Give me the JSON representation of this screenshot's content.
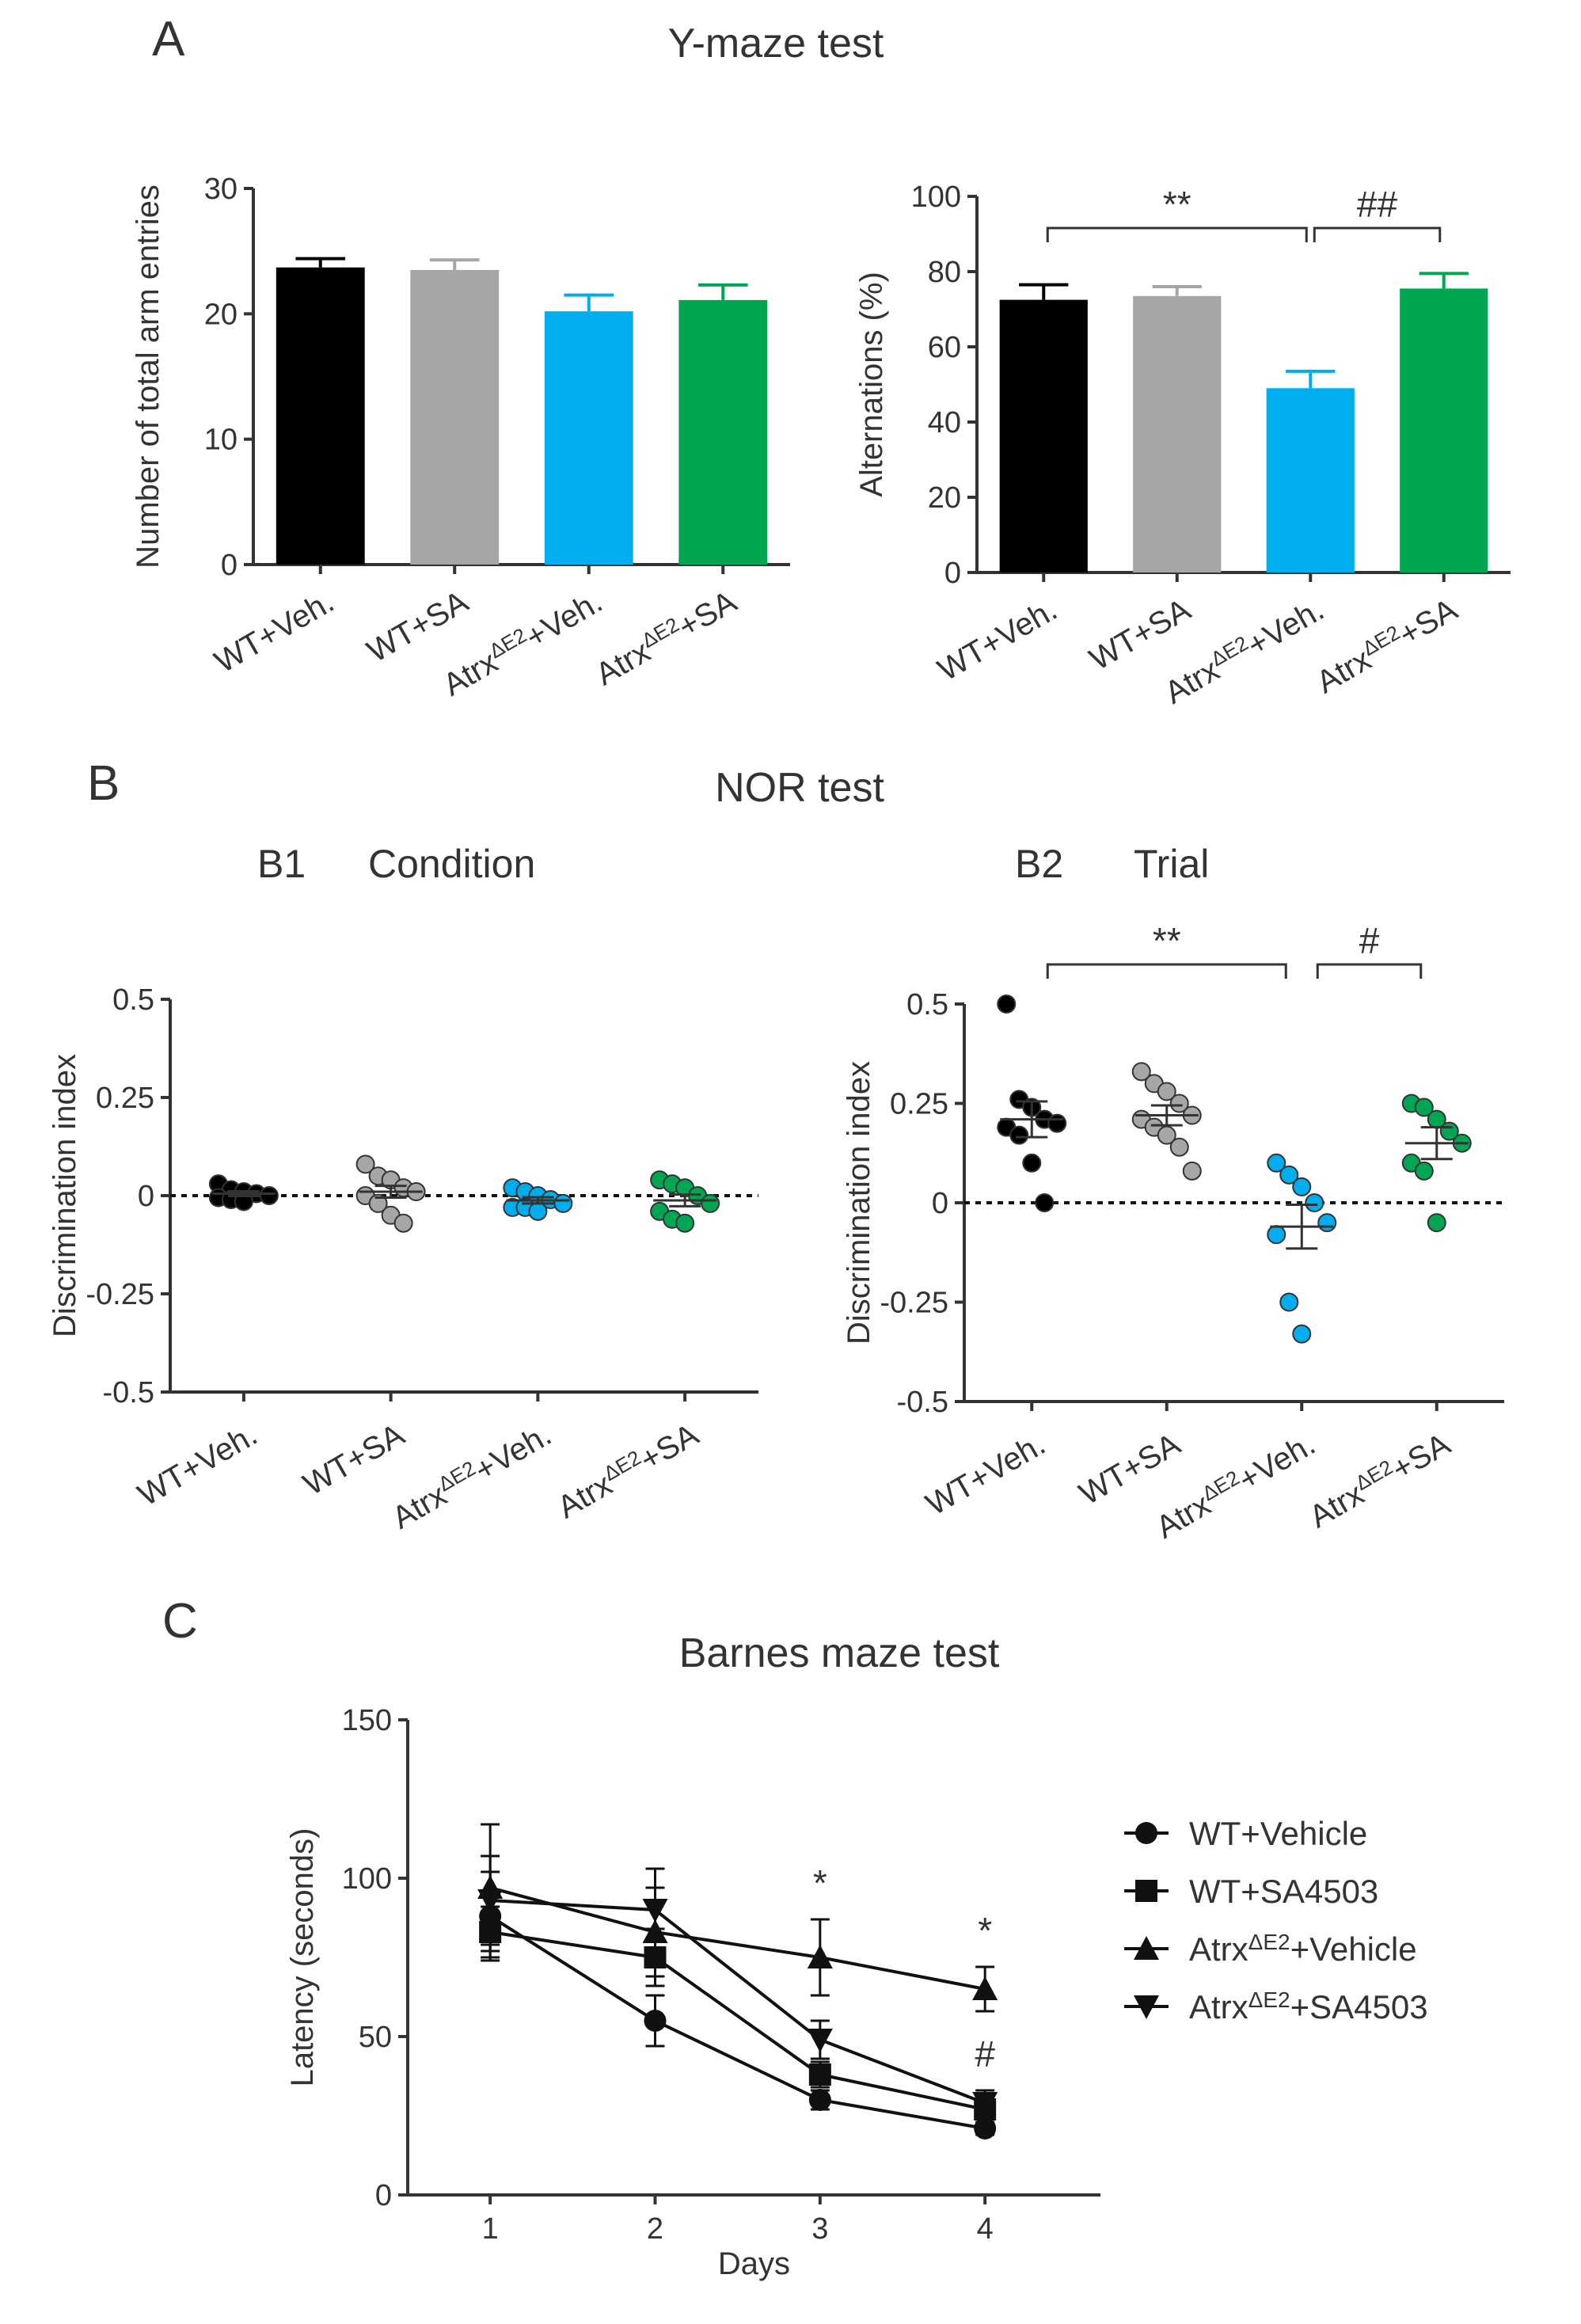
{
  "figure": {
    "panel_letters": [
      "A",
      "B",
      "C"
    ],
    "titles": {
      "A": "Y-maze test",
      "B": "NOR test",
      "C": "Barnes maze test"
    },
    "subpanels": {
      "B1": {
        "label": "B1",
        "title": "Condition"
      },
      "B2": {
        "label": "B2",
        "title": "Trial"
      }
    },
    "colors": {
      "wt_veh": "#000000",
      "wt_sa": "#a6a6a6",
      "atrx_veh": "#00aeef",
      "atrx_sa": "#00a651"
    }
  },
  "chart_data": [
    {
      "id": "A1",
      "type": "bar",
      "title": "",
      "ylabel": "Number of total arm entries",
      "ylim": [
        0,
        30
      ],
      "yticks": [
        0,
        10,
        20,
        30
      ],
      "categories": [
        {
          "main": "WT+Veh.",
          "sup": "",
          "tail": ""
        },
        {
          "main": "WT+SA",
          "sup": "",
          "tail": ""
        },
        {
          "main": "Atrx",
          "sup": "ΔE2",
          "tail": "+Veh."
        },
        {
          "main": "Atrx",
          "sup": "ΔE2",
          "tail": "+SA"
        }
      ],
      "values": [
        23.7,
        23.5,
        20.2,
        21.1
      ],
      "errors": [
        0.7,
        0.8,
        1.3,
        1.2
      ],
      "colors": [
        "#000000",
        "#a6a6a6",
        "#00aeef",
        "#00a651"
      ],
      "annotations": []
    },
    {
      "id": "A2",
      "type": "bar",
      "title": "",
      "ylabel": "Alternations (%)",
      "ylim": [
        0,
        100
      ],
      "yticks": [
        0,
        20,
        40,
        60,
        80,
        100
      ],
      "categories": [
        {
          "main": "WT+Veh.",
          "sup": "",
          "tail": ""
        },
        {
          "main": "WT+SA",
          "sup": "",
          "tail": ""
        },
        {
          "main": "Atrx",
          "sup": "ΔE2",
          "tail": "+Veh."
        },
        {
          "main": "Atrx",
          "sup": "ΔE2",
          "tail": "+SA"
        }
      ],
      "values": [
        72.5,
        73.5,
        49,
        75.5
      ],
      "errors": [
        4,
        2.5,
        4.5,
        4
      ],
      "colors": [
        "#000000",
        "#a6a6a6",
        "#00aeef",
        "#00a651"
      ],
      "annotations": [
        {
          "from": 0,
          "to": 2,
          "label": "**"
        },
        {
          "from": 2,
          "to": 3,
          "label": "##"
        }
      ]
    },
    {
      "id": "B1",
      "type": "scatter",
      "title": "Condition",
      "ylabel": "Discrimination index",
      "ylim": [
        -0.5,
        0.5
      ],
      "yticks": [
        -0.5,
        -0.25,
        0,
        0.25,
        0.5
      ],
      "categories": [
        {
          "main": "WT+Veh.",
          "sup": "",
          "tail": ""
        },
        {
          "main": "WT+SA",
          "sup": "",
          "tail": ""
        },
        {
          "main": "Atrx",
          "sup": "ΔE2",
          "tail": "+Veh."
        },
        {
          "main": "Atrx",
          "sup": "ΔE2",
          "tail": "+SA"
        }
      ],
      "points": [
        [
          0.03,
          0.015,
          0.01,
          0.0,
          -0.005,
          -0.01,
          -0.015,
          0.005
        ],
        [
          0.08,
          0.05,
          0.02,
          0.0,
          0.01,
          -0.02,
          -0.05,
          -0.07,
          0.04
        ],
        [
          0.02,
          0.0,
          -0.01,
          -0.02,
          -0.03,
          -0.04,
          -0.03,
          0.01
        ],
        [
          0.04,
          0.02,
          0.0,
          -0.02,
          -0.04,
          -0.06,
          -0.07,
          0.03
        ]
      ],
      "means": [
        0.005,
        0.01,
        -0.012,
        -0.012
      ],
      "sems": [
        0.006,
        0.015,
        0.008,
        0.015
      ],
      "colors": [
        "#000000",
        "#a6a6a6",
        "#00aeef",
        "#00a651"
      ],
      "annotations": []
    },
    {
      "id": "B2",
      "type": "scatter",
      "title": "Trial",
      "ylabel": "Discrimination index",
      "ylim": [
        -0.5,
        0.5
      ],
      "yticks": [
        -0.5,
        -0.25,
        0,
        0.25,
        0.5
      ],
      "categories": [
        {
          "main": "WT+Veh.",
          "sup": "",
          "tail": ""
        },
        {
          "main": "WT+SA",
          "sup": "",
          "tail": ""
        },
        {
          "main": "Atrx",
          "sup": "ΔE2",
          "tail": "+Veh."
        },
        {
          "main": "Atrx",
          "sup": "ΔE2",
          "tail": "+SA"
        }
      ],
      "points": [
        [
          0.5,
          0.26,
          0.24,
          0.21,
          0.2,
          0.19,
          0.17,
          0.1,
          0.0
        ],
        [
          0.33,
          0.3,
          0.28,
          0.25,
          0.22,
          0.21,
          0.19,
          0.17,
          0.14,
          0.08
        ],
        [
          0.1,
          0.07,
          0.04,
          0.0,
          -0.05,
          -0.08,
          -0.25,
          -0.33
        ],
        [
          0.25,
          0.24,
          0.21,
          0.18,
          0.15,
          0.1,
          0.08,
          -0.05
        ]
      ],
      "means": [
        0.21,
        0.22,
        -0.06,
        0.15
      ],
      "sems": [
        0.045,
        0.025,
        0.055,
        0.04
      ],
      "colors": [
        "#000000",
        "#a6a6a6",
        "#00aeef",
        "#00a651"
      ],
      "annotations": [
        {
          "from": 0,
          "to": 2,
          "label": "**"
        },
        {
          "from": 2,
          "to": 3,
          "label": "#"
        }
      ]
    },
    {
      "id": "C",
      "type": "line",
      "title": "Barnes maze test",
      "xlabel": "Days",
      "ylabel": "Latency (seconds)",
      "x": [
        1,
        2,
        3,
        4
      ],
      "xlim": [
        0.5,
        4.7
      ],
      "ylim": [
        0,
        150
      ],
      "yticks": [
        0,
        50,
        100,
        150
      ],
      "series": [
        {
          "name": "WT+Vehicle",
          "sup": "",
          "tail": "",
          "marker": "circle",
          "values": [
            88,
            55,
            30,
            21
          ],
          "errors": [
            14,
            8,
            3,
            2
          ]
        },
        {
          "name": "WT+SA4503",
          "sup": "",
          "tail": "",
          "marker": "square",
          "values": [
            83,
            75,
            38,
            27
          ],
          "errors": [
            8,
            9,
            4,
            3
          ]
        },
        {
          "name": "Atrx",
          "sup": "ΔE2",
          "tail": "+Vehicle",
          "marker": "triangle-up",
          "values": [
            97,
            83,
            75,
            65
          ],
          "errors": [
            20,
            14,
            12,
            7
          ]
        },
        {
          "name": "Atrx",
          "sup": "ΔE2",
          "tail": "+SA4503",
          "marker": "triangle-down",
          "values": [
            93,
            90,
            49,
            29
          ],
          "errors": [
            14,
            13,
            6,
            4
          ]
        }
      ],
      "annotations": [
        {
          "x": 3,
          "label": "*",
          "pos": "above"
        },
        {
          "x": 4,
          "label": "*",
          "pos": "above"
        },
        {
          "x": 4,
          "label": "#",
          "pos": "below"
        }
      ]
    }
  ]
}
